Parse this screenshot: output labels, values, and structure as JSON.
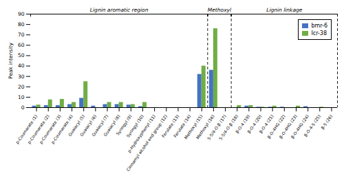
{
  "chart_data": {
    "type": "bar",
    "categories": [
      "p-Coumarate (1)",
      "p-Coumarate (2)",
      "p-Coumarate (3)",
      "p-Coumarate (4)",
      "Guaiacyl (5)",
      "Guaiacyl (6)",
      "Guaiacyl (7)",
      "Guaiacyl (8)",
      "Syringyl (9)",
      "Syringyl (10)",
      "p-Hydroxyphenyl (11)",
      "Cinnamyl alcohol end group (12)",
      "Ferulate (13)",
      "Ferulate (14)",
      "Methoxyl (15)",
      "Methoxyl (16)",
      "5-5/4-O-β (17)",
      "5-5/4-O-β (18)",
      "β-O-4 (19)",
      "β-O-4 (20)",
      "β-O-4 (21)",
      "β-O-4HG (22)",
      "β-O-4HG (23)",
      "β-O-4HG (24)",
      "β-O-4-S (25)",
      "β-5 (26)"
    ],
    "series": [
      {
        "name": "bmr-6",
        "color": "#4472C4",
        "values": [
          1.5,
          2.0,
          2.0,
          3.0,
          9.0,
          1.5,
          3.0,
          3.0,
          2.5,
          1.0,
          0.0,
          0.0,
          0.0,
          0.0,
          32.0,
          36.0,
          0.0,
          0.0,
          1.5,
          0.5,
          0.5,
          0.5,
          0.0,
          1.0,
          0.0,
          0.0
        ]
      },
      {
        "name": "Icr-38",
        "color": "#70AD47",
        "values": [
          2.5,
          7.5,
          8.0,
          5.0,
          25.0,
          0.0,
          5.0,
          5.0,
          3.0,
          5.0,
          0.0,
          0.0,
          0.0,
          0.0,
          40.0,
          76.0,
          0.0,
          2.0,
          2.0,
          0.5,
          1.5,
          0.0,
          1.5,
          0.0,
          0.5,
          0.0
        ]
      }
    ],
    "ylabel": "Peak intensity",
    "ylim": [
      0,
      90
    ],
    "yticks": [
      0,
      10,
      20,
      30,
      40,
      50,
      60,
      70,
      80,
      90
    ],
    "sections": [
      {
        "label": "Lignin aromatic region",
        "first": "p-Coumarate (1)",
        "last": "Methoxyl (15)"
      },
      {
        "label": "Methoxyl",
        "first": "Methoxyl (16)",
        "last": "5-5/4-O-β (17)"
      },
      {
        "label": "Lignin linkage",
        "first": "5-5/4-O-β (18)",
        "last": "β-5 (26)"
      }
    ],
    "legend": "upper right",
    "grid": false
  }
}
